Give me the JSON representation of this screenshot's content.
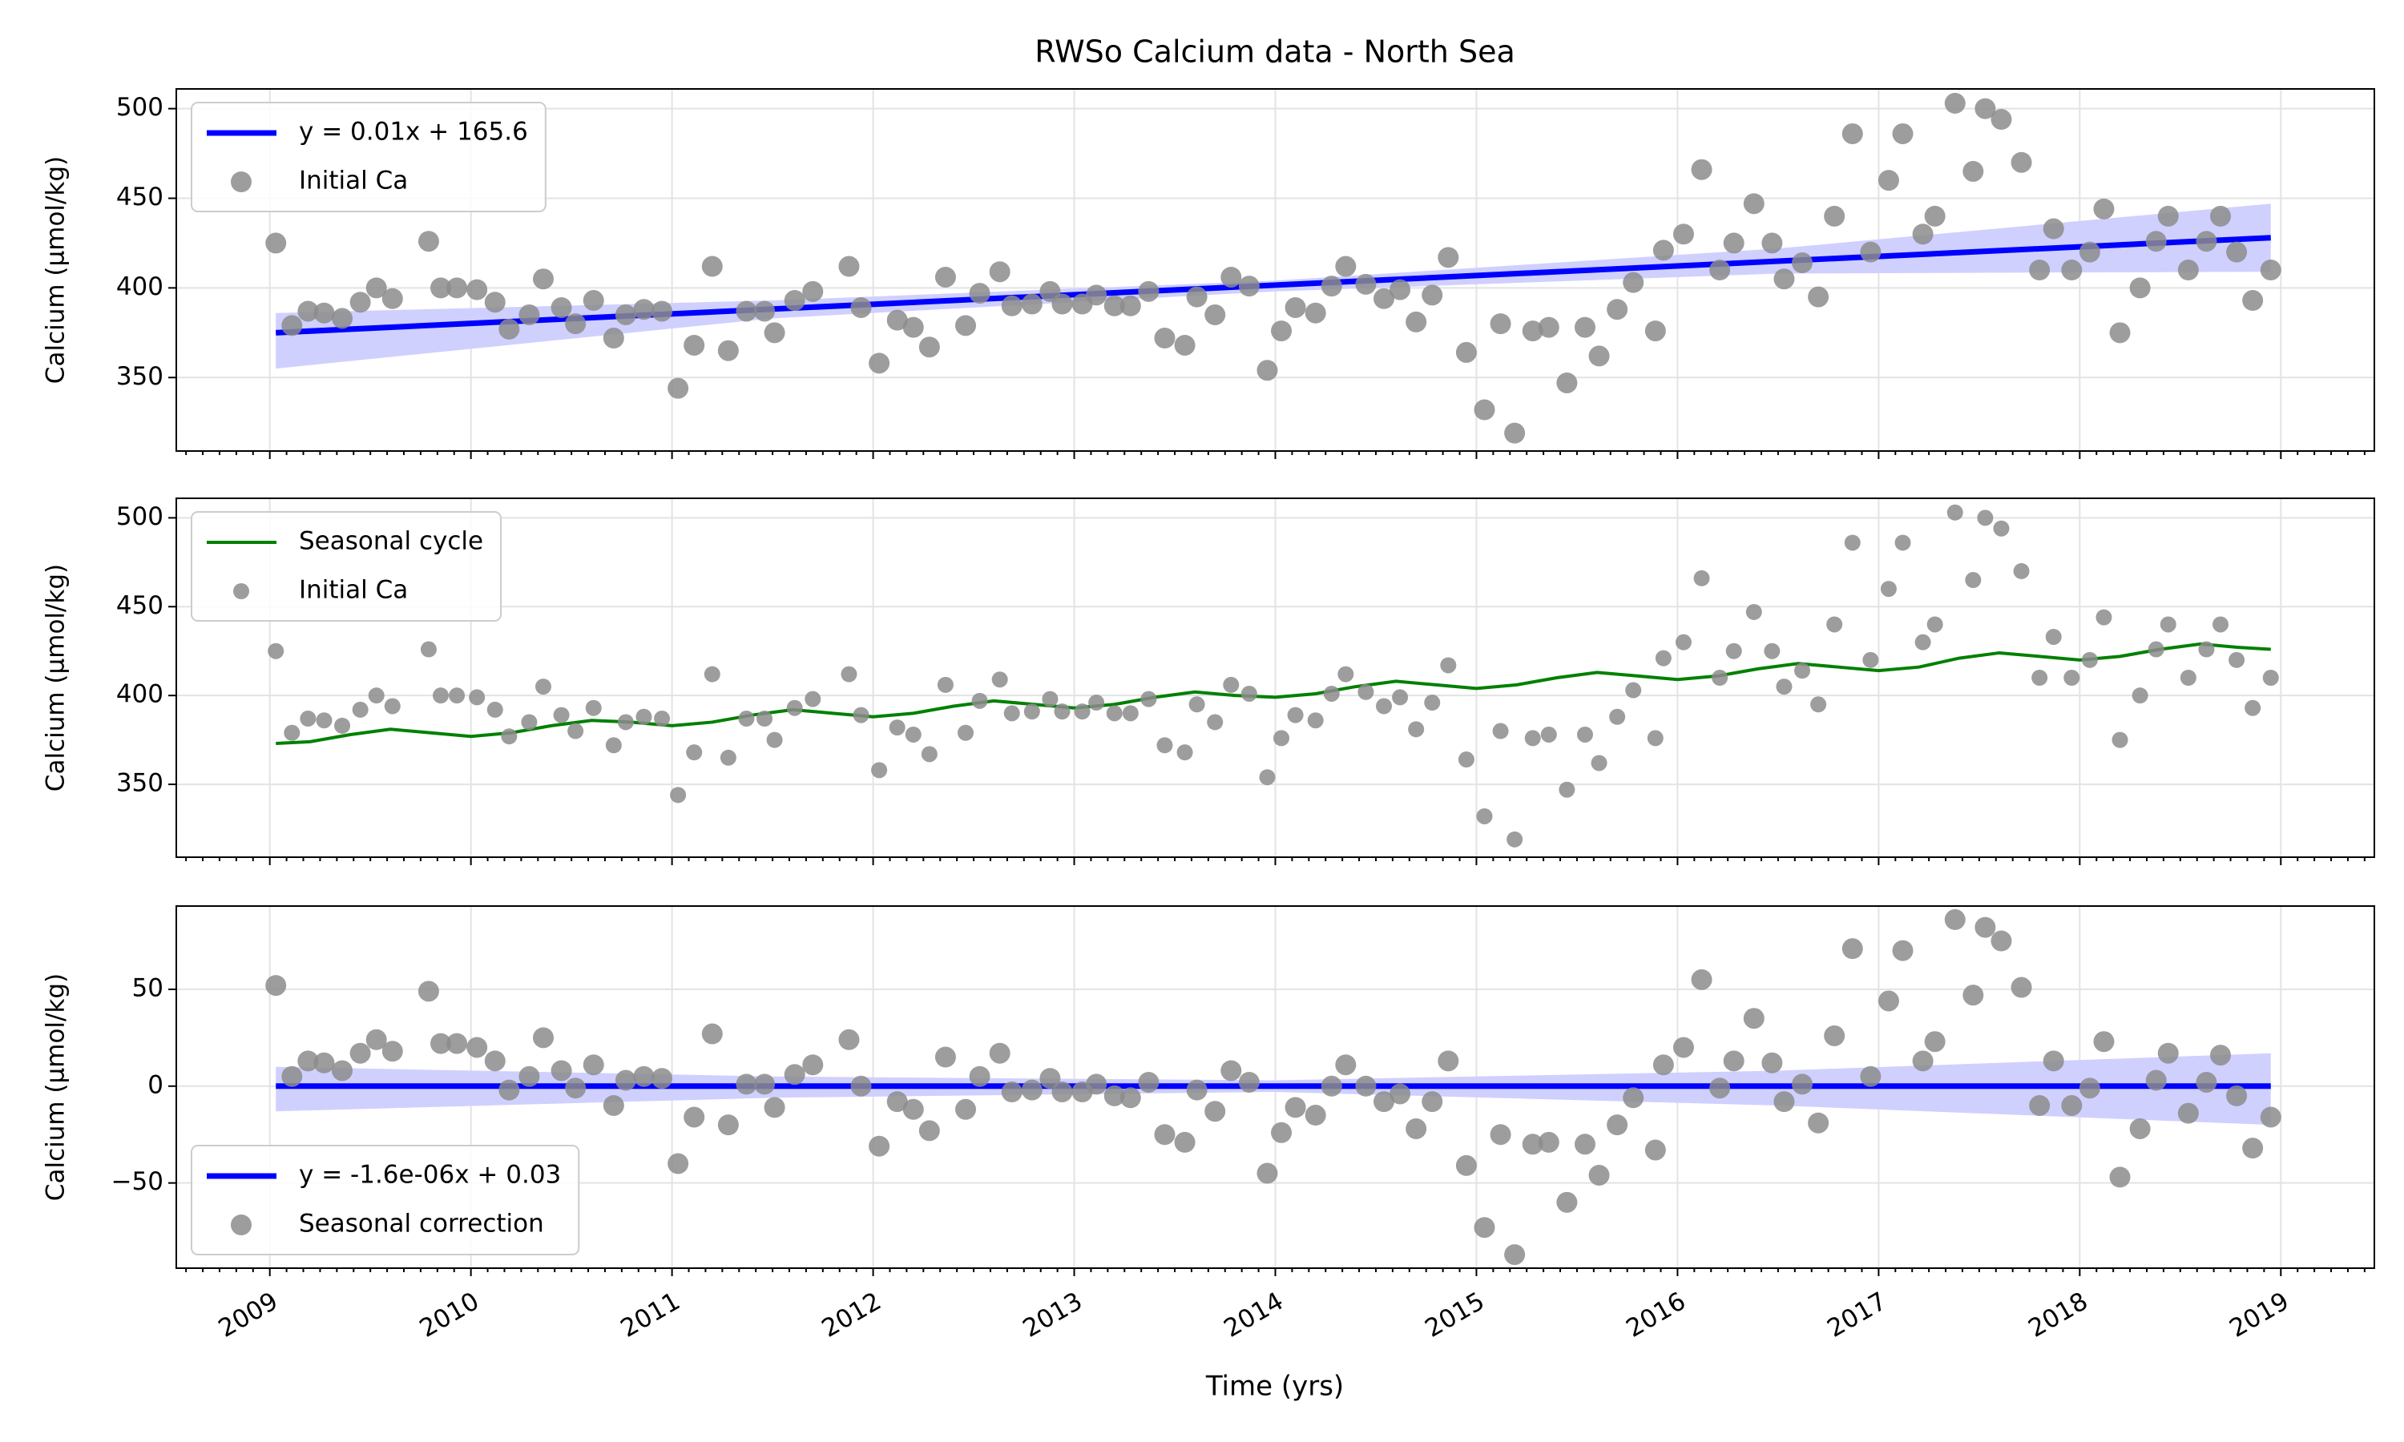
{
  "chart_data": [
    {
      "type": "line",
      "title": "RWSo Calcium data - North Sea",
      "ylabel": "Calcium (µmol/kg)",
      "xlim": [
        2008.535,
        2019.465
      ],
      "ylim": [
        309,
        511
      ],
      "yticks": [
        350,
        400,
        450,
        500
      ],
      "grid": true,
      "legend": "upper left",
      "band": {
        "color": "#d0d0ff",
        "x": [
          2009.03,
          2011.5,
          2013.99,
          2016.5,
          2018.95
        ],
        "lower": [
          355,
          383,
          398,
          408,
          409
        ],
        "upper": [
          386,
          393,
          404,
          422,
          447
        ]
      },
      "series": [
        {
          "name": "y = 0.01x + 165.6",
          "type": "line",
          "color": "#0000ff",
          "x": [
            2009.03,
            2018.95
          ],
          "values": [
            375,
            428
          ]
        },
        {
          "name": "Initial Ca",
          "type": "scatter",
          "color": "#8c8c8c",
          "x": [
            2009.03,
            2009.11,
            2009.19,
            2009.27,
            2009.36,
            2009.45,
            2009.53,
            2009.61,
            2009.79,
            2009.85,
            2009.93,
            2010.03,
            2010.12,
            2010.19,
            2010.29,
            2010.36,
            2010.45,
            2010.52,
            2010.61,
            2010.71,
            2010.77,
            2010.86,
            2010.95,
            2011.03,
            2011.11,
            2011.2,
            2011.28,
            2011.37,
            2011.46,
            2011.51,
            2011.61,
            2011.7,
            2011.88,
            2011.94,
            2012.03,
            2012.12,
            2012.2,
            2012.28,
            2012.36,
            2012.46,
            2012.53,
            2012.63,
            2012.69,
            2012.79,
            2012.88,
            2012.94,
            2013.04,
            2013.11,
            2013.2,
            2013.28,
            2013.37,
            2013.45,
            2013.55,
            2013.61,
            2013.7,
            2013.78,
            2013.87,
            2013.96,
            2014.03,
            2014.1,
            2014.2,
            2014.28,
            2014.35,
            2014.45,
            2014.54,
            2014.62,
            2014.7,
            2014.78,
            2014.86,
            2014.95,
            2015.04,
            2015.12,
            2015.19,
            2015.28,
            2015.36,
            2015.45,
            2015.54,
            2015.61,
            2015.7,
            2015.78,
            2015.89,
            2015.93,
            2016.03,
            2016.12,
            2016.21,
            2016.28,
            2016.38,
            2016.47,
            2016.53,
            2016.62,
            2016.7,
            2016.78,
            2016.87,
            2016.96,
            2017.05,
            2017.12,
            2017.22,
            2017.28,
            2017.38,
            2017.47,
            2017.53,
            2017.61,
            2017.71,
            2017.8,
            2017.87,
            2017.96,
            2018.05,
            2018.12,
            2018.2,
            2018.3,
            2018.38,
            2018.44,
            2018.54,
            2018.63,
            2018.7,
            2018.78,
            2018.86,
            2018.95
          ],
          "values": [
            425,
            379,
            387,
            386,
            383,
            392,
            400,
            394,
            426,
            400,
            400,
            399,
            392,
            377,
            385,
            405,
            389,
            380,
            393,
            372,
            385,
            388,
            387,
            344,
            368,
            412,
            365,
            387,
            387,
            375,
            393,
            398,
            412,
            389,
            358,
            382,
            378,
            367,
            406,
            379,
            397,
            409,
            390,
            391,
            398,
            391,
            391,
            396,
            390,
            390,
            398,
            372,
            368,
            395,
            385,
            406,
            401,
            354,
            376,
            389,
            386,
            401,
            412,
            402,
            394,
            399,
            381,
            396,
            417,
            364,
            332,
            380,
            319,
            376,
            378,
            347,
            378,
            362,
            388,
            403,
            376,
            421,
            430,
            466,
            410,
            425,
            447,
            425,
            405,
            414,
            395,
            440,
            486,
            420,
            460,
            486,
            430,
            440,
            503,
            465,
            500,
            494,
            470,
            410,
            433,
            410,
            420,
            444,
            375,
            400,
            426,
            440,
            410,
            426,
            440,
            420,
            393,
            410
          ]
        }
      ]
    },
    {
      "type": "line",
      "ylabel": "Calcium (µmol/kg)",
      "xlim": [
        2008.535,
        2019.465
      ],
      "ylim": [
        309,
        511
      ],
      "yticks": [
        350,
        400,
        450,
        500
      ],
      "grid": true,
      "legend": "upper left",
      "series": [
        {
          "name": "Seasonal cycle",
          "type": "line",
          "color": "#008000",
          "x": [
            2009.03,
            2009.2,
            2009.4,
            2009.6,
            2009.8,
            2010.0,
            2010.2,
            2010.4,
            2010.6,
            2010.8,
            2011.0,
            2011.2,
            2011.4,
            2011.6,
            2011.8,
            2012.0,
            2012.2,
            2012.4,
            2012.6,
            2012.8,
            2013.0,
            2013.2,
            2013.4,
            2013.6,
            2013.8,
            2014.0,
            2014.2,
            2014.4,
            2014.6,
            2014.8,
            2015.0,
            2015.2,
            2015.4,
            2015.6,
            2015.8,
            2016.0,
            2016.2,
            2016.4,
            2016.6,
            2016.8,
            2017.0,
            2017.2,
            2017.4,
            2017.6,
            2017.8,
            2018.0,
            2018.2,
            2018.4,
            2018.6,
            2018.8,
            2018.95
          ],
          "values": [
            373,
            374,
            378,
            381,
            379,
            377,
            379,
            383,
            386,
            385,
            383,
            385,
            389,
            392,
            390,
            388,
            390,
            394,
            397,
            395,
            393,
            395,
            399,
            402,
            400,
            399,
            401,
            405,
            408,
            406,
            404,
            406,
            410,
            413,
            411,
            409,
            411,
            415,
            418,
            416,
            414,
            416,
            421,
            424,
            422,
            420,
            422,
            426,
            429,
            427,
            426
          ]
        },
        {
          "name": "Initial Ca",
          "type": "scatter",
          "color": "#8c8c8c",
          "x": [
            2009.03,
            2009.11,
            2009.19,
            2009.27,
            2009.36,
            2009.45,
            2009.53,
            2009.61,
            2009.79,
            2009.85,
            2009.93,
            2010.03,
            2010.12,
            2010.19,
            2010.29,
            2010.36,
            2010.45,
            2010.52,
            2010.61,
            2010.71,
            2010.77,
            2010.86,
            2010.95,
            2011.03,
            2011.11,
            2011.2,
            2011.28,
            2011.37,
            2011.46,
            2011.51,
            2011.61,
            2011.7,
            2011.88,
            2011.94,
            2012.03,
            2012.12,
            2012.2,
            2012.28,
            2012.36,
            2012.46,
            2012.53,
            2012.63,
            2012.69,
            2012.79,
            2012.88,
            2012.94,
            2013.04,
            2013.11,
            2013.2,
            2013.28,
            2013.37,
            2013.45,
            2013.55,
            2013.61,
            2013.7,
            2013.78,
            2013.87,
            2013.96,
            2014.03,
            2014.1,
            2014.2,
            2014.28,
            2014.35,
            2014.45,
            2014.54,
            2014.62,
            2014.7,
            2014.78,
            2014.86,
            2014.95,
            2015.04,
            2015.12,
            2015.19,
            2015.28,
            2015.36,
            2015.45,
            2015.54,
            2015.61,
            2015.7,
            2015.78,
            2015.89,
            2015.93,
            2016.03,
            2016.12,
            2016.21,
            2016.28,
            2016.38,
            2016.47,
            2016.53,
            2016.62,
            2016.7,
            2016.78,
            2016.87,
            2016.96,
            2017.05,
            2017.12,
            2017.22,
            2017.28,
            2017.38,
            2017.47,
            2017.53,
            2017.61,
            2017.71,
            2017.8,
            2017.87,
            2017.96,
            2018.05,
            2018.12,
            2018.2,
            2018.3,
            2018.38,
            2018.44,
            2018.54,
            2018.63,
            2018.7,
            2018.78,
            2018.86,
            2018.95
          ],
          "values": [
            425,
            379,
            387,
            386,
            383,
            392,
            400,
            394,
            426,
            400,
            400,
            399,
            392,
            377,
            385,
            405,
            389,
            380,
            393,
            372,
            385,
            388,
            387,
            344,
            368,
            412,
            365,
            387,
            387,
            375,
            393,
            398,
            412,
            389,
            358,
            382,
            378,
            367,
            406,
            379,
            397,
            409,
            390,
            391,
            398,
            391,
            391,
            396,
            390,
            390,
            398,
            372,
            368,
            395,
            385,
            406,
            401,
            354,
            376,
            389,
            386,
            401,
            412,
            402,
            394,
            399,
            381,
            396,
            417,
            364,
            332,
            380,
            319,
            376,
            378,
            347,
            378,
            362,
            388,
            403,
            376,
            421,
            430,
            466,
            410,
            425,
            447,
            425,
            405,
            414,
            395,
            440,
            486,
            420,
            460,
            486,
            430,
            440,
            503,
            465,
            500,
            494,
            470,
            410,
            433,
            410,
            420,
            444,
            375,
            400,
            426,
            440,
            410,
            426,
            440,
            420,
            393,
            410
          ]
        }
      ]
    },
    {
      "type": "line",
      "ylabel": "Calcium (µmol/kg)",
      "xlabel": "Time (yrs)",
      "xlim": [
        2008.535,
        2019.465
      ],
      "xticks": [
        2009,
        2010,
        2011,
        2012,
        2013,
        2014,
        2015,
        2016,
        2017,
        2018,
        2019
      ],
      "ylim": [
        -94,
        93
      ],
      "yticks": [
        {
          "value": -50,
          "label": "−50"
        },
        0,
        50
      ],
      "grid": true,
      "legend": "lower left",
      "band": {
        "color": "#d0d0ff",
        "x": [
          2009.03,
          2011.5,
          2013.99,
          2016.5,
          2018.95
        ],
        "lower": [
          -13,
          -6,
          -3,
          -10,
          -20
        ],
        "upper": [
          10,
          5,
          3,
          8,
          17
        ]
      },
      "series": [
        {
          "name": "y = -1.6e-06x + 0.03",
          "type": "line",
          "color": "#0000ff",
          "x": [
            2009.03,
            2018.95
          ],
          "values": [
            0,
            0
          ]
        },
        {
          "name": "Seasonal correction",
          "type": "scatter",
          "color": "#8c8c8c",
          "x": [
            2009.03,
            2009.11,
            2009.19,
            2009.27,
            2009.36,
            2009.45,
            2009.53,
            2009.61,
            2009.79,
            2009.85,
            2009.93,
            2010.03,
            2010.12,
            2010.19,
            2010.29,
            2010.36,
            2010.45,
            2010.52,
            2010.61,
            2010.71,
            2010.77,
            2010.86,
            2010.95,
            2011.03,
            2011.11,
            2011.2,
            2011.28,
            2011.37,
            2011.46,
            2011.51,
            2011.61,
            2011.7,
            2011.88,
            2011.94,
            2012.03,
            2012.12,
            2012.2,
            2012.28,
            2012.36,
            2012.46,
            2012.53,
            2012.63,
            2012.69,
            2012.79,
            2012.88,
            2012.94,
            2013.04,
            2013.11,
            2013.2,
            2013.28,
            2013.37,
            2013.45,
            2013.55,
            2013.61,
            2013.7,
            2013.78,
            2013.87,
            2013.96,
            2014.03,
            2014.1,
            2014.2,
            2014.28,
            2014.35,
            2014.45,
            2014.54,
            2014.62,
            2014.7,
            2014.78,
            2014.86,
            2014.95,
            2015.04,
            2015.12,
            2015.19,
            2015.28,
            2015.36,
            2015.45,
            2015.54,
            2015.61,
            2015.7,
            2015.78,
            2015.89,
            2015.93,
            2016.03,
            2016.12,
            2016.21,
            2016.28,
            2016.38,
            2016.47,
            2016.53,
            2016.62,
            2016.7,
            2016.78,
            2016.87,
            2016.96,
            2017.05,
            2017.12,
            2017.22,
            2017.28,
            2017.38,
            2017.47,
            2017.53,
            2017.61,
            2017.71,
            2017.8,
            2017.87,
            2017.96,
            2018.05,
            2018.12,
            2018.2,
            2018.3,
            2018.38,
            2018.44,
            2018.54,
            2018.63,
            2018.7,
            2018.78,
            2018.86,
            2018.95
          ],
          "values": [
            52,
            5,
            13,
            12,
            8,
            17,
            24,
            18,
            49,
            22,
            22,
            20,
            13,
            -2,
            5,
            25,
            8,
            -1,
            11,
            -10,
            3,
            5,
            4,
            -40,
            -16,
            27,
            -20,
            1,
            1,
            -11,
            6,
            11,
            24,
            0,
            -31,
            -8,
            -12,
            -23,
            15,
            -12,
            5,
            17,
            -3,
            -2,
            4,
            -3,
            -3,
            1,
            -5,
            -6,
            2,
            -25,
            -29,
            -2,
            -13,
            8,
            2,
            -45,
            -24,
            -11,
            -15,
            0,
            11,
            0,
            -8,
            -4,
            -22,
            -8,
            13,
            -41,
            -73,
            -25,
            -87,
            -30,
            -29,
            -60,
            -30,
            -46,
            -20,
            -6,
            -33,
            11,
            20,
            55,
            -1,
            13,
            35,
            12,
            -8,
            1,
            -19,
            26,
            71,
            5,
            44,
            70,
            13,
            23,
            86,
            47,
            82,
            75,
            51,
            -10,
            13,
            -10,
            -1,
            23,
            -47,
            -22,
            3,
            17,
            -14,
            2,
            16,
            -5,
            -32,
            -16
          ]
        }
      ]
    }
  ]
}
